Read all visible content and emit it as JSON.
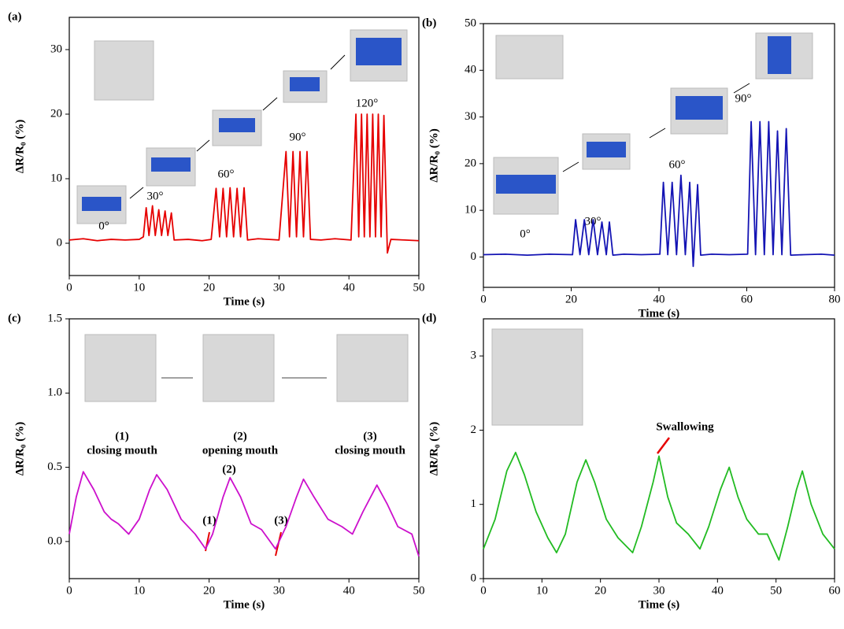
{
  "chart_data": [
    {
      "type": "line",
      "title": "(a)",
      "x_label": "Time (s)",
      "y_label": "ΔR/R₀ (%)",
      "color": "#e60000",
      "xlim": [
        0,
        50
      ],
      "xticks": [
        0,
        10,
        20,
        30,
        40,
        50
      ],
      "ylim": [
        -5,
        35
      ],
      "yticks": [
        0,
        10,
        20,
        30
      ],
      "annotations": [
        "0°",
        "30°",
        "60°",
        "90°",
        "120°"
      ],
      "x": [
        0,
        2,
        4,
        6,
        8,
        10,
        10.6,
        11,
        11.4,
        11.9,
        12.3,
        12.8,
        13.2,
        13.7,
        14.1,
        14.6,
        15,
        17,
        19,
        20.3,
        21,
        21.5,
        22,
        22.5,
        23,
        23.5,
        24,
        24.5,
        25,
        25.5,
        27,
        30,
        31,
        31.5,
        32,
        32.5,
        33,
        33.5,
        34,
        34.5,
        36,
        38,
        40.3,
        41,
        41.4,
        41.8,
        42.2,
        42.6,
        43,
        43.4,
        43.8,
        44.2,
        44.6,
        45,
        45.5,
        46,
        48,
        50
      ],
      "values": [
        0.5,
        0.7,
        0.4,
        0.6,
        0.5,
        0.6,
        1,
        5.5,
        1.2,
        5.8,
        1.2,
        5.2,
        1.2,
        5,
        1.2,
        4.7,
        0.5,
        0.6,
        0.4,
        0.6,
        8.5,
        1,
        8.5,
        1,
        8.6,
        1,
        8.5,
        1,
        8.6,
        0.5,
        0.7,
        0.5,
        14.2,
        1,
        14.2,
        1,
        14.2,
        1,
        14.2,
        0.6,
        0.5,
        0.7,
        0.5,
        20,
        1,
        20,
        1,
        20,
        1,
        20,
        1,
        20,
        1,
        19.8,
        -1.5,
        0.6,
        0.5,
        0.4
      ]
    },
    {
      "type": "line",
      "title": "(b)",
      "x_label": "Time (s)",
      "y_label": "ΔR/R₀ (%)",
      "color": "#1414b4",
      "xlim": [
        0,
        80
      ],
      "xticks": [
        0,
        20,
        40,
        60,
        80
      ],
      "ylim": [
        -6.5,
        50
      ],
      "yticks": [
        0,
        10,
        20,
        30,
        40,
        50
      ],
      "annotations": [
        "0°",
        "30°",
        "60°",
        "90°"
      ],
      "x": [
        0,
        5,
        10,
        15,
        20.3,
        21,
        22,
        23,
        24,
        25,
        26,
        27,
        28,
        28.7,
        29.5,
        32,
        36,
        40.2,
        41,
        42,
        43,
        44,
        45,
        46,
        47,
        47.8,
        48.8,
        49.5,
        52,
        56,
        60.2,
        61,
        62,
        63,
        64,
        65,
        66,
        67,
        68,
        69,
        70,
        73,
        77,
        80
      ],
      "values": [
        0.5,
        0.6,
        0.4,
        0.6,
        0.5,
        8,
        0.5,
        8,
        0.5,
        8,
        0.5,
        7.5,
        0.5,
        7.5,
        0.4,
        0.6,
        0.5,
        0.6,
        16,
        0.5,
        16,
        0.5,
        17.5,
        0.5,
        16,
        -2,
        15.5,
        0.4,
        0.6,
        0.5,
        0.6,
        29,
        0.5,
        29,
        0.5,
        29,
        0.5,
        27,
        0.5,
        27.5,
        0.4,
        0.5,
        0.6,
        0.4
      ]
    },
    {
      "type": "line",
      "title": "(c)",
      "x_label": "Time (s)",
      "y_label": "ΔR/R₀ (%)",
      "color": "#cc10cc",
      "xlim": [
        0,
        50
      ],
      "xticks": [
        0,
        10,
        20,
        30,
        40,
        50
      ],
      "ylim": [
        -0.25,
        1.5
      ],
      "yticks": [
        {
          "value": 0,
          "label": "0.0"
        },
        {
          "value": 0.5,
          "label": "0.5"
        },
        {
          "value": 1,
          "label": "1.0"
        },
        {
          "value": 1.5,
          "label": "1.5"
        }
      ],
      "annotations": [
        "(1)",
        "closing mouth",
        "(2)",
        "opening mouth",
        "(3)",
        "closing mouth",
        "(1)",
        "(2)",
        "(3)"
      ],
      "x": [
        0,
        1,
        2,
        3.5,
        5,
        6,
        7,
        8.5,
        10,
        11.5,
        12.5,
        14,
        16,
        18,
        19.5,
        20.5,
        22,
        23,
        24.5,
        26,
        27.5,
        29.5,
        31,
        32.5,
        33.5,
        35,
        37,
        39,
        40.5,
        42,
        44,
        45.5,
        47,
        49,
        50
      ],
      "values": [
        0.05,
        0.3,
        0.47,
        0.35,
        0.2,
        0.15,
        0.12,
        0.05,
        0.15,
        0.35,
        0.45,
        0.35,
        0.15,
        0.05,
        -0.05,
        0.05,
        0.3,
        0.43,
        0.3,
        0.12,
        0.08,
        -0.05,
        0.1,
        0.3,
        0.42,
        0.3,
        0.15,
        0.1,
        0.05,
        0.2,
        0.38,
        0.25,
        0.1,
        0.05,
        -0.1
      ]
    },
    {
      "type": "line",
      "title": "(d)",
      "x_label": "Time (s)",
      "y_label": "ΔR/R₀ (%)",
      "color": "#22bb22",
      "xlim": [
        0,
        60
      ],
      "xticks": [
        0,
        10,
        20,
        30,
        40,
        50,
        60
      ],
      "ylim": [
        0,
        3.5
      ],
      "yticks": [
        0,
        1,
        2,
        3
      ],
      "annotations": [
        "Swallowing"
      ],
      "x": [
        0,
        2,
        4,
        5.5,
        7,
        9,
        11,
        12.5,
        14,
        16,
        17.5,
        19,
        21,
        23,
        25.5,
        27,
        29,
        30,
        31.5,
        33,
        35,
        37,
        38.5,
        40.5,
        42,
        43.5,
        45,
        47,
        48.5,
        50.5,
        52,
        53.5,
        54.5,
        56,
        58,
        60
      ],
      "values": [
        0.4,
        0.8,
        1.45,
        1.7,
        1.4,
        0.9,
        0.55,
        0.35,
        0.6,
        1.3,
        1.6,
        1.3,
        0.8,
        0.55,
        0.35,
        0.7,
        1.3,
        1.65,
        1.1,
        0.75,
        0.6,
        0.4,
        0.7,
        1.2,
        1.5,
        1.1,
        0.8,
        0.6,
        0.6,
        0.25,
        0.7,
        1.2,
        1.45,
        1.0,
        0.6,
        0.4
      ]
    }
  ]
}
